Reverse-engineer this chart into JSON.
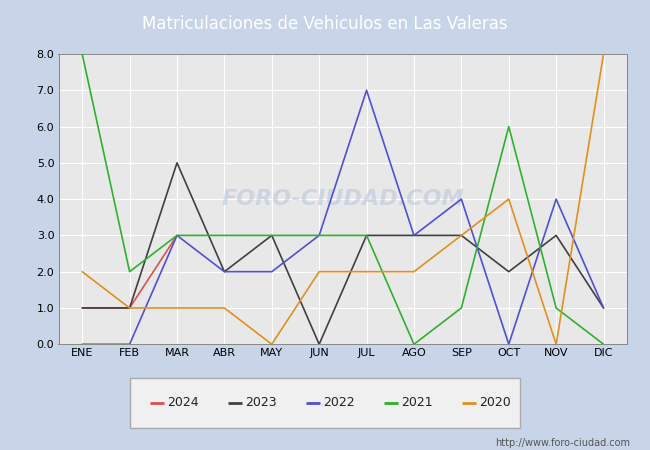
{
  "title": "Matriculaciones de Vehiculos en Las Valeras",
  "months": [
    "ENE",
    "FEB",
    "MAR",
    "ABR",
    "MAY",
    "JUN",
    "JUL",
    "AGO",
    "SEP",
    "OCT",
    "NOV",
    "DIC"
  ],
  "ylim": [
    0.0,
    8.0
  ],
  "yticks": [
    0.0,
    1.0,
    2.0,
    3.0,
    4.0,
    5.0,
    6.0,
    7.0,
    8.0
  ],
  "series": {
    "2024": {
      "color": "#e05050",
      "data": [
        1,
        1,
        3,
        null,
        null,
        null,
        null,
        null,
        null,
        null,
        null,
        null
      ]
    },
    "2023": {
      "color": "#404040",
      "data": [
        1,
        1,
        5,
        2,
        3,
        0,
        3,
        3,
        3,
        2,
        3,
        1
      ]
    },
    "2022": {
      "color": "#5050d0",
      "data": [
        0,
        0,
        3,
        2,
        2,
        3,
        7,
        3,
        4,
        0,
        4,
        1
      ]
    },
    "2021": {
      "color": "#30b030",
      "data": [
        8,
        2,
        3,
        3,
        3,
        3,
        3,
        0,
        1,
        6,
        1,
        0
      ]
    },
    "2020": {
      "color": "#e09020",
      "data": [
        2,
        1,
        1,
        1,
        0,
        2,
        2,
        2,
        3,
        4,
        0,
        8
      ]
    }
  },
  "watermark": "FORO-CIUDAD.COM",
  "url": "http://www.foro-ciudad.com",
  "fig_bg_color": "#c8d4e8",
  "plot_bg_color": "#e8e8e8",
  "title_bg_color": "#5577cc",
  "title_text_color": "#ffffff",
  "grid_color": "#ffffff",
  "legend_bg_color": "#f0f0f0",
  "legend_edge_color": "#aaaaaa"
}
